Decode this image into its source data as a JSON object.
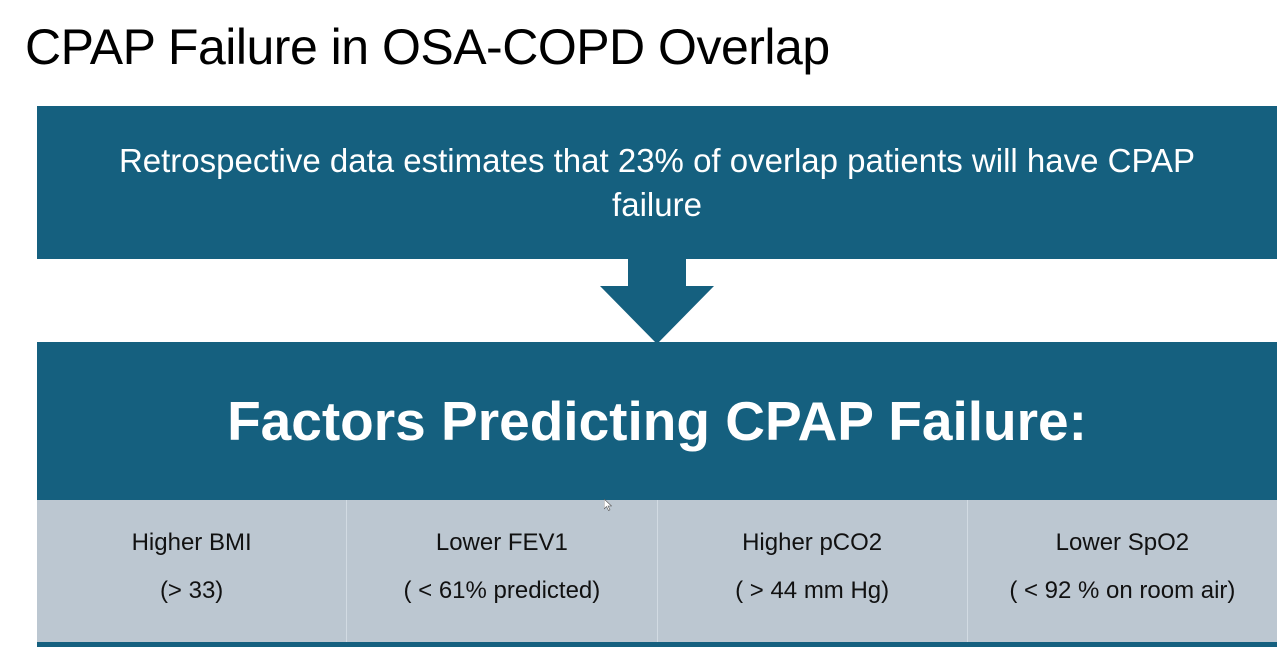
{
  "slide": {
    "title": "CPAP Failure in OSA-COPD Overlap",
    "summary": "Retrospective data estimates that 23% of overlap patients will have CPAP failure",
    "factors_heading": "Factors Predicting CPAP Failure:",
    "factors": [
      {
        "name": "Higher BMI",
        "threshold": "(> 33)"
      },
      {
        "name": "Lower FEV1",
        "threshold": "( < 61% predicted)"
      },
      {
        "name": "Higher pCO2",
        "threshold": "( > 44 mm Hg)"
      },
      {
        "name": "Lower SpO2",
        "threshold": "( < 92 % on room air)"
      }
    ]
  },
  "colors": {
    "accent": "#15607f",
    "table_fill": "#bcc7d1",
    "text_light": "#ffffff"
  },
  "icons": {
    "arrow": "down-arrow-icon",
    "cursor": "mouse-pointer-icon"
  }
}
